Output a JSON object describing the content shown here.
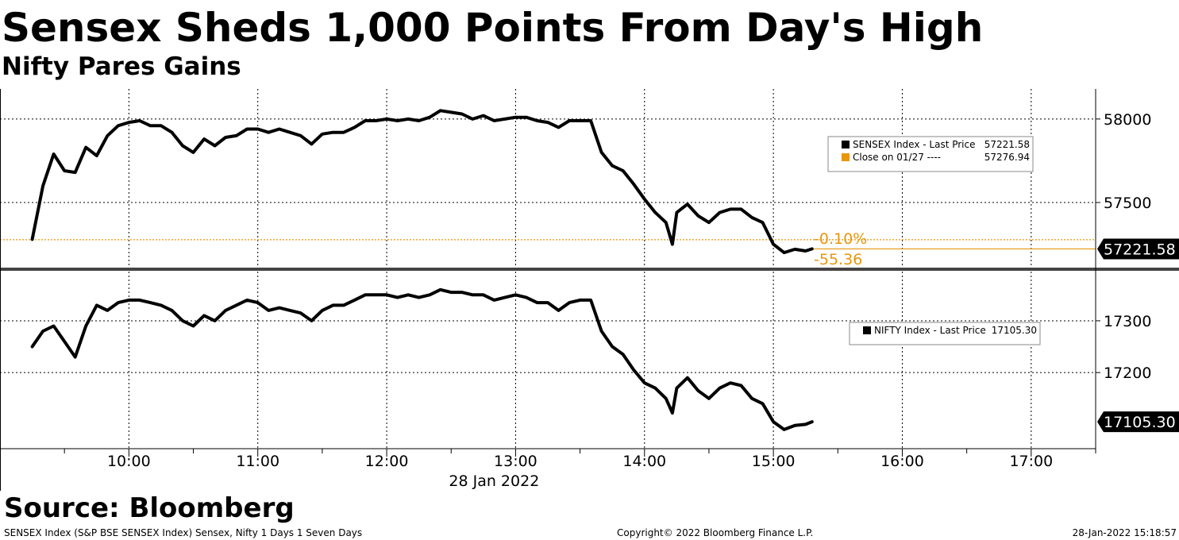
{
  "title": "Sensex Sheds 1,000 Points From Day's High",
  "subtitle": "Nifty Pares Gains",
  "source": "Source: Bloomberg",
  "footer": {
    "left": "SENSEX Index (S&P BSE SENSEX Index) Sensex, Nifty 1 Days 1 Seven Days",
    "center": "Copyright© 2022 Bloomberg Finance L.P.",
    "right": "28-Jan-2022 15:18:57"
  },
  "colors": {
    "line": "#000000",
    "reference": "#e8960c",
    "grid": "#000000",
    "legend_bg": "#ffffff"
  },
  "chart_data": [
    {
      "type": "line",
      "panel": "top",
      "xlim": [
        "09:00",
        "17:30"
      ],
      "ylim": [
        57110,
        58180
      ],
      "yticks": [
        58000,
        57500
      ],
      "ytick_labels": [
        "58000",
        "57500"
      ],
      "last_label": "57221.58",
      "reference_line": {
        "value": 57276.94
      },
      "annotations": {
        "pct_change": "-0.10%",
        "abs_change": "-55.36"
      },
      "legend": [
        {
          "label": "SENSEX Index - Last Price",
          "value": "57221.58",
          "color": "#000000"
        },
        {
          "label": "Close on 01/27 ----",
          "value": "57276.94",
          "color": "#e8960c"
        }
      ],
      "series": [
        {
          "x": [
            "09:15",
            "09:20",
            "09:25",
            "09:30",
            "09:35",
            "09:40",
            "09:45",
            "09:50",
            "09:55",
            "10:00",
            "10:05",
            "10:10",
            "10:15",
            "10:20",
            "10:25",
            "10:30",
            "10:35",
            "10:40",
            "10:45",
            "10:50",
            "10:55",
            "11:00",
            "11:05",
            "11:10",
            "11:15",
            "11:20",
            "11:25",
            "11:30",
            "11:35",
            "11:40",
            "11:45",
            "11:50",
            "11:55",
            "12:00",
            "12:05",
            "12:10",
            "12:15",
            "12:20",
            "12:25",
            "12:30",
            "12:35",
            "12:40",
            "12:45",
            "12:50",
            "12:55",
            "13:00",
            "13:05",
            "13:10",
            "13:15",
            "13:20",
            "13:25",
            "13:30",
            "13:35",
            "13:40",
            "13:45",
            "13:50",
            "13:55",
            "14:00",
            "14:05",
            "14:10",
            "14:13",
            "14:15",
            "14:20",
            "14:25",
            "14:30",
            "14:35",
            "14:40",
            "14:45",
            "14:50",
            "14:55",
            "15:00",
            "15:05",
            "15:10",
            "15:15",
            "15:18"
          ],
          "y": [
            57280,
            57600,
            57790,
            57690,
            57680,
            57830,
            57780,
            57900,
            57960,
            57980,
            57990,
            57960,
            57960,
            57920,
            57840,
            57800,
            57880,
            57840,
            57890,
            57900,
            57940,
            57940,
            57920,
            57940,
            57920,
            57900,
            57850,
            57910,
            57920,
            57920,
            57950,
            57990,
            57990,
            58000,
            57990,
            58000,
            57990,
            58010,
            58050,
            58040,
            58030,
            58000,
            58020,
            57990,
            58000,
            58010,
            58010,
            57990,
            57980,
            57950,
            57990,
            57990,
            57990,
            57800,
            57720,
            57690,
            57610,
            57520,
            57440,
            57380,
            57250,
            57440,
            57490,
            57420,
            57380,
            57440,
            57460,
            57460,
            57410,
            57380,
            57250,
            57200,
            57220,
            57210,
            57222
          ]
        }
      ]
    },
    {
      "type": "line",
      "panel": "bottom",
      "xlim": [
        "09:00",
        "17:30"
      ],
      "ylim": [
        17053,
        17395
      ],
      "yticks": [
        17300,
        17200
      ],
      "ytick_labels": [
        "17300",
        "17200"
      ],
      "last_label": "17105.30",
      "legend": [
        {
          "label": "NIFTY Index - Last Price",
          "value": "17105.30",
          "color": "#000000"
        }
      ],
      "series": [
        {
          "x": [
            "09:15",
            "09:20",
            "09:25",
            "09:30",
            "09:35",
            "09:40",
            "09:45",
            "09:50",
            "09:55",
            "10:00",
            "10:05",
            "10:10",
            "10:15",
            "10:20",
            "10:25",
            "10:30",
            "10:35",
            "10:40",
            "10:45",
            "10:50",
            "10:55",
            "11:00",
            "11:05",
            "11:10",
            "11:15",
            "11:20",
            "11:25",
            "11:30",
            "11:35",
            "11:40",
            "11:45",
            "11:50",
            "11:55",
            "12:00",
            "12:05",
            "12:10",
            "12:15",
            "12:20",
            "12:25",
            "12:30",
            "12:35",
            "12:40",
            "12:45",
            "12:50",
            "12:55",
            "13:00",
            "13:05",
            "13:10",
            "13:15",
            "13:20",
            "13:25",
            "13:30",
            "13:35",
            "13:40",
            "13:45",
            "13:50",
            "13:55",
            "14:00",
            "14:05",
            "14:10",
            "14:13",
            "14:15",
            "14:20",
            "14:25",
            "14:30",
            "14:35",
            "14:40",
            "14:45",
            "14:50",
            "14:55",
            "15:00",
            "15:05",
            "15:10",
            "15:15",
            "15:18"
          ],
          "y": [
            17250,
            17280,
            17290,
            17260,
            17230,
            17290,
            17330,
            17320,
            17335,
            17340,
            17340,
            17335,
            17330,
            17320,
            17300,
            17290,
            17310,
            17300,
            17320,
            17330,
            17340,
            17335,
            17320,
            17325,
            17320,
            17315,
            17300,
            17320,
            17330,
            17330,
            17340,
            17350,
            17350,
            17350,
            17345,
            17350,
            17345,
            17350,
            17360,
            17355,
            17355,
            17350,
            17350,
            17340,
            17345,
            17350,
            17345,
            17335,
            17335,
            17320,
            17335,
            17340,
            17340,
            17280,
            17250,
            17235,
            17205,
            17180,
            17170,
            17150,
            17122,
            17170,
            17190,
            17165,
            17150,
            17170,
            17180,
            17175,
            17150,
            17140,
            17105,
            17090,
            17098,
            17100,
            17105
          ]
        }
      ]
    }
  ]
}
